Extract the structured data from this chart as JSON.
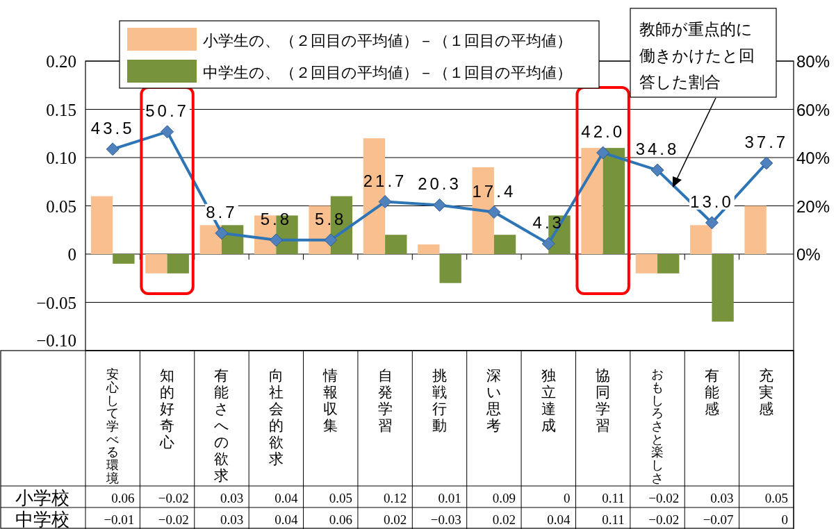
{
  "chart_data": {
    "type": "bar",
    "categories": [
      "安心して学べる環境",
      "知的好奇心",
      "有能さへの欲求",
      "向社会的欲求",
      "情報収集",
      "自発学習",
      "挑戦行動",
      "深い思考",
      "独立達成",
      "協同学習",
      "おもしろさと楽しさ",
      "有能感",
      "充実感"
    ],
    "series": [
      {
        "name": "小学生の、（２回目の平均値）－（１回目の平均値）",
        "color": "#f9bf8f",
        "values": [
          0.06,
          -0.02,
          0.03,
          0.04,
          0.05,
          0.12,
          0.01,
          0.09,
          0,
          0.11,
          -0.02,
          0.03,
          0.05
        ]
      },
      {
        "name": "中学生の、（２回目の平均値）－（１回目の平均値）",
        "color": "#77933c",
        "values": [
          -0.01,
          -0.02,
          0.03,
          0.04,
          0.06,
          0.02,
          -0.03,
          0.02,
          0.04,
          0.11,
          -0.02,
          -0.07,
          0
        ]
      },
      {
        "type": "line",
        "axis": "y2",
        "color": "#2e75b6",
        "marker": "diamond",
        "values": [
          43.5,
          50.7,
          8.7,
          5.8,
          5.8,
          21.7,
          20.3,
          17.4,
          4.3,
          42.0,
          34.8,
          13.0,
          37.7
        ],
        "value_labels": [
          "43.5",
          "50.7",
          "8.7",
          "5.8",
          "5.8",
          "21.7",
          "20.3",
          "17.4",
          "4.3",
          "42.0",
          "34.8",
          "13.0",
          "37.7"
        ]
      }
    ],
    "ylim": [
      -0.1,
      0.2
    ],
    "yticks": [
      {
        "value": -0.1,
        "label": "−0.10"
      },
      {
        "value": -0.05,
        "label": "−0.05"
      },
      0,
      {
        "value": 0.05,
        "label": "0.05"
      },
      {
        "value": 0.1,
        "label": "0.10"
      },
      {
        "value": 0.15,
        "label": "0.15"
      },
      {
        "value": 0.2,
        "label": "0.20"
      }
    ],
    "y2lim": [
      -40,
      80
    ],
    "y2ticks": [
      {
        "value": 0,
        "label": "0%"
      },
      {
        "value": 20,
        "label": "20%"
      },
      {
        "value": 40,
        "label": "40%"
      },
      {
        "value": 60,
        "label": "60%"
      },
      {
        "value": 80,
        "label": "80%"
      }
    ],
    "grid": "y",
    "legend": "top",
    "data_labels": true,
    "annotations": [
      "教師が重点的に働きかけたと回答した割合",
      "小学校",
      "中学校"
    ]
  }
}
